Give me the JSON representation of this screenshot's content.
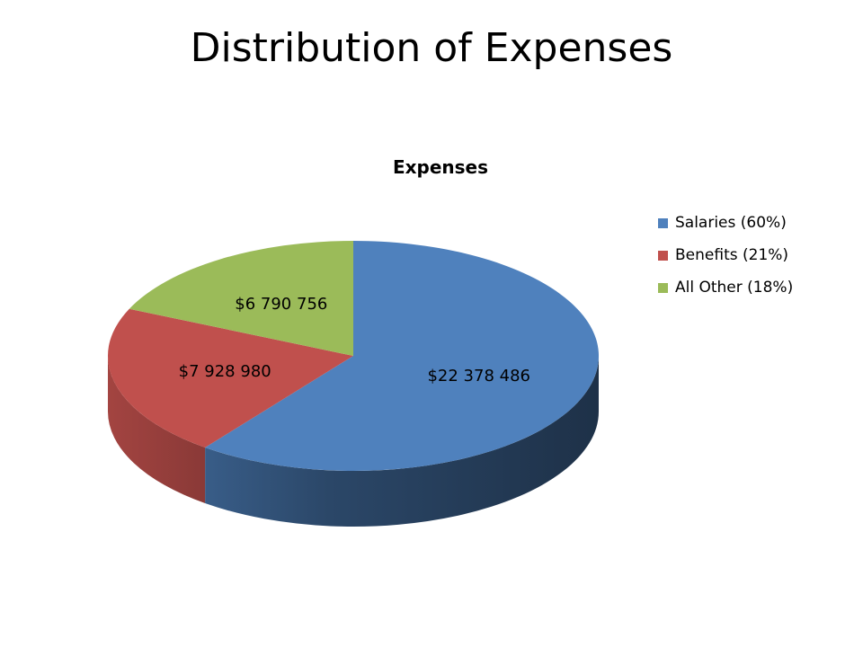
{
  "slide": {
    "title": "Distribution of Expenses"
  },
  "chart_data": {
    "type": "pie",
    "title": "Expenses",
    "is_3d": true,
    "legend_position": "right",
    "slices": [
      {
        "label": "Salaries (60%)",
        "value": 22378486,
        "data_label": "$22 378 486",
        "color": "#4F81BD"
      },
      {
        "label": "Benefits (21%)",
        "value": 7928980,
        "data_label": "$7 928 980",
        "color": "#C0504D"
      },
      {
        "label": "All Other (18%)",
        "value": 6790756,
        "data_label": "$6 790 756",
        "color": "#9BBB59"
      }
    ]
  }
}
